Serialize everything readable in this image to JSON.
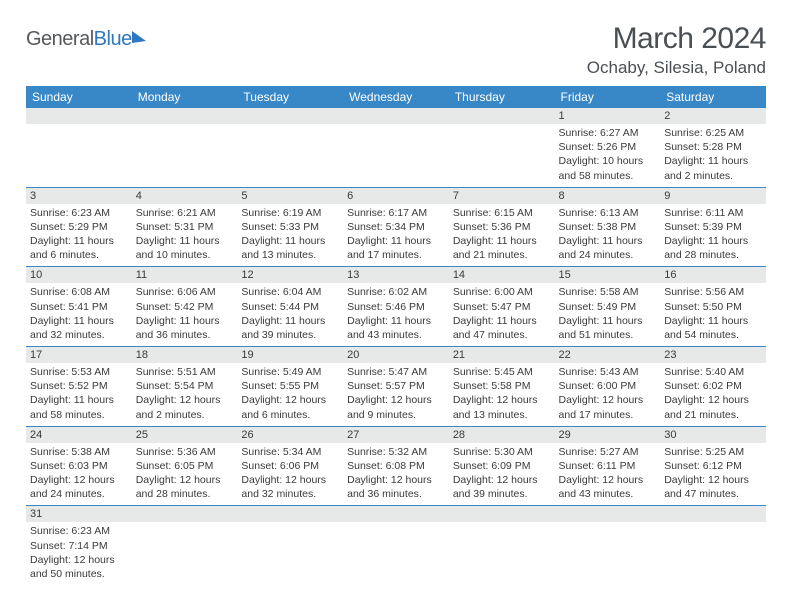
{
  "brand": {
    "name_part1": "General",
    "name_part2": "Blue"
  },
  "title": "March 2024",
  "location": "Ochaby, Silesia, Poland",
  "colors": {
    "header_bg": "#3887c7",
    "header_fg": "#ffffff",
    "band_bg": "#e7e9e9",
    "row_border": "#3887c7",
    "text": "#3a3a3a",
    "logo_gray": "#55585c",
    "logo_blue": "#2f78bf",
    "page_bg": "#ffffff"
  },
  "typography": {
    "title_fontsize": 30,
    "location_fontsize": 17,
    "header_fontsize": 12,
    "cell_fontsize": 10.5
  },
  "dayHeaders": [
    "Sunday",
    "Monday",
    "Tuesday",
    "Wednesday",
    "Thursday",
    "Friday",
    "Saturday"
  ],
  "weeks": [
    [
      {
        "n": "",
        "sr": "",
        "ss": "",
        "dl": ""
      },
      {
        "n": "",
        "sr": "",
        "ss": "",
        "dl": ""
      },
      {
        "n": "",
        "sr": "",
        "ss": "",
        "dl": ""
      },
      {
        "n": "",
        "sr": "",
        "ss": "",
        "dl": ""
      },
      {
        "n": "",
        "sr": "",
        "ss": "",
        "dl": ""
      },
      {
        "n": "1",
        "sr": "Sunrise: 6:27 AM",
        "ss": "Sunset: 5:26 PM",
        "dl": "Daylight: 10 hours and 58 minutes."
      },
      {
        "n": "2",
        "sr": "Sunrise: 6:25 AM",
        "ss": "Sunset: 5:28 PM",
        "dl": "Daylight: 11 hours and 2 minutes."
      }
    ],
    [
      {
        "n": "3",
        "sr": "Sunrise: 6:23 AM",
        "ss": "Sunset: 5:29 PM",
        "dl": "Daylight: 11 hours and 6 minutes."
      },
      {
        "n": "4",
        "sr": "Sunrise: 6:21 AM",
        "ss": "Sunset: 5:31 PM",
        "dl": "Daylight: 11 hours and 10 minutes."
      },
      {
        "n": "5",
        "sr": "Sunrise: 6:19 AM",
        "ss": "Sunset: 5:33 PM",
        "dl": "Daylight: 11 hours and 13 minutes."
      },
      {
        "n": "6",
        "sr": "Sunrise: 6:17 AM",
        "ss": "Sunset: 5:34 PM",
        "dl": "Daylight: 11 hours and 17 minutes."
      },
      {
        "n": "7",
        "sr": "Sunrise: 6:15 AM",
        "ss": "Sunset: 5:36 PM",
        "dl": "Daylight: 11 hours and 21 minutes."
      },
      {
        "n": "8",
        "sr": "Sunrise: 6:13 AM",
        "ss": "Sunset: 5:38 PM",
        "dl": "Daylight: 11 hours and 24 minutes."
      },
      {
        "n": "9",
        "sr": "Sunrise: 6:11 AM",
        "ss": "Sunset: 5:39 PM",
        "dl": "Daylight: 11 hours and 28 minutes."
      }
    ],
    [
      {
        "n": "10",
        "sr": "Sunrise: 6:08 AM",
        "ss": "Sunset: 5:41 PM",
        "dl": "Daylight: 11 hours and 32 minutes."
      },
      {
        "n": "11",
        "sr": "Sunrise: 6:06 AM",
        "ss": "Sunset: 5:42 PM",
        "dl": "Daylight: 11 hours and 36 minutes."
      },
      {
        "n": "12",
        "sr": "Sunrise: 6:04 AM",
        "ss": "Sunset: 5:44 PM",
        "dl": "Daylight: 11 hours and 39 minutes."
      },
      {
        "n": "13",
        "sr": "Sunrise: 6:02 AM",
        "ss": "Sunset: 5:46 PM",
        "dl": "Daylight: 11 hours and 43 minutes."
      },
      {
        "n": "14",
        "sr": "Sunrise: 6:00 AM",
        "ss": "Sunset: 5:47 PM",
        "dl": "Daylight: 11 hours and 47 minutes."
      },
      {
        "n": "15",
        "sr": "Sunrise: 5:58 AM",
        "ss": "Sunset: 5:49 PM",
        "dl": "Daylight: 11 hours and 51 minutes."
      },
      {
        "n": "16",
        "sr": "Sunrise: 5:56 AM",
        "ss": "Sunset: 5:50 PM",
        "dl": "Daylight: 11 hours and 54 minutes."
      }
    ],
    [
      {
        "n": "17",
        "sr": "Sunrise: 5:53 AM",
        "ss": "Sunset: 5:52 PM",
        "dl": "Daylight: 11 hours and 58 minutes."
      },
      {
        "n": "18",
        "sr": "Sunrise: 5:51 AM",
        "ss": "Sunset: 5:54 PM",
        "dl": "Daylight: 12 hours and 2 minutes."
      },
      {
        "n": "19",
        "sr": "Sunrise: 5:49 AM",
        "ss": "Sunset: 5:55 PM",
        "dl": "Daylight: 12 hours and 6 minutes."
      },
      {
        "n": "20",
        "sr": "Sunrise: 5:47 AM",
        "ss": "Sunset: 5:57 PM",
        "dl": "Daylight: 12 hours and 9 minutes."
      },
      {
        "n": "21",
        "sr": "Sunrise: 5:45 AM",
        "ss": "Sunset: 5:58 PM",
        "dl": "Daylight: 12 hours and 13 minutes."
      },
      {
        "n": "22",
        "sr": "Sunrise: 5:43 AM",
        "ss": "Sunset: 6:00 PM",
        "dl": "Daylight: 12 hours and 17 minutes."
      },
      {
        "n": "23",
        "sr": "Sunrise: 5:40 AM",
        "ss": "Sunset: 6:02 PM",
        "dl": "Daylight: 12 hours and 21 minutes."
      }
    ],
    [
      {
        "n": "24",
        "sr": "Sunrise: 5:38 AM",
        "ss": "Sunset: 6:03 PM",
        "dl": "Daylight: 12 hours and 24 minutes."
      },
      {
        "n": "25",
        "sr": "Sunrise: 5:36 AM",
        "ss": "Sunset: 6:05 PM",
        "dl": "Daylight: 12 hours and 28 minutes."
      },
      {
        "n": "26",
        "sr": "Sunrise: 5:34 AM",
        "ss": "Sunset: 6:06 PM",
        "dl": "Daylight: 12 hours and 32 minutes."
      },
      {
        "n": "27",
        "sr": "Sunrise: 5:32 AM",
        "ss": "Sunset: 6:08 PM",
        "dl": "Daylight: 12 hours and 36 minutes."
      },
      {
        "n": "28",
        "sr": "Sunrise: 5:30 AM",
        "ss": "Sunset: 6:09 PM",
        "dl": "Daylight: 12 hours and 39 minutes."
      },
      {
        "n": "29",
        "sr": "Sunrise: 5:27 AM",
        "ss": "Sunset: 6:11 PM",
        "dl": "Daylight: 12 hours and 43 minutes."
      },
      {
        "n": "30",
        "sr": "Sunrise: 5:25 AM",
        "ss": "Sunset: 6:12 PM",
        "dl": "Daylight: 12 hours and 47 minutes."
      }
    ],
    [
      {
        "n": "31",
        "sr": "Sunrise: 6:23 AM",
        "ss": "Sunset: 7:14 PM",
        "dl": "Daylight: 12 hours and 50 minutes."
      },
      {
        "n": "",
        "sr": "",
        "ss": "",
        "dl": ""
      },
      {
        "n": "",
        "sr": "",
        "ss": "",
        "dl": ""
      },
      {
        "n": "",
        "sr": "",
        "ss": "",
        "dl": ""
      },
      {
        "n": "",
        "sr": "",
        "ss": "",
        "dl": ""
      },
      {
        "n": "",
        "sr": "",
        "ss": "",
        "dl": ""
      },
      {
        "n": "",
        "sr": "",
        "ss": "",
        "dl": ""
      }
    ]
  ]
}
